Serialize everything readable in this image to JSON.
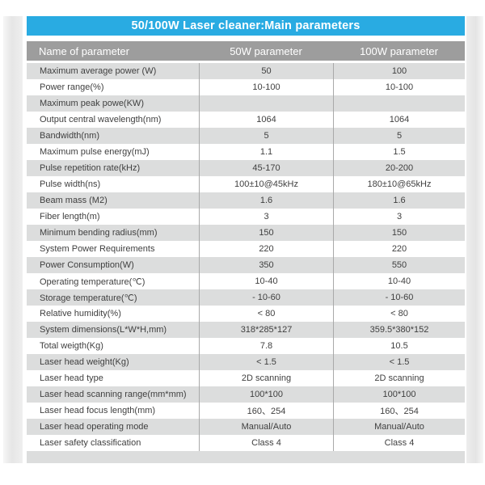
{
  "page": {
    "title": "50/100W Laser cleaner:Main parameters"
  },
  "colors": {
    "title_bar_bg": "#29abe2",
    "title_text": "#ffffff",
    "header_bg": "#9d9d9d",
    "header_text": "#ffffff",
    "row_alt_bg": "#dcdddd",
    "row_bg": "#ffffff",
    "row_text": "#3f3f3f",
    "column_divider": "#a9a9a9"
  },
  "table": {
    "headers": [
      "Name of parameter",
      "50W parameter",
      "100W parameter"
    ],
    "rows": [
      {
        "name": "Maximum average power (W)",
        "v50": "50",
        "v100": "100"
      },
      {
        "name": "Power range(%)",
        "v50": "10-100",
        "v100": "10-100"
      },
      {
        "name": "Maximum peak powe(KW)",
        "v50": "",
        "v100": ""
      },
      {
        "name": "Output central wavelength(nm)",
        "v50": "1064",
        "v100": "1064"
      },
      {
        "name": "Bandwidth(nm)",
        "v50": "5",
        "v100": "5"
      },
      {
        "name": "Maximum pulse energy(mJ)",
        "v50": "1.1",
        "v100": "1.5"
      },
      {
        "name": "Pulse repetition rate(kHz)",
        "v50": "45-170",
        "v100": "20-200"
      },
      {
        "name": "Pulse width(ns)",
        "v50": "100±10@45kHz",
        "v100": "180±10@65kHz"
      },
      {
        "name": "Beam mass (M2)",
        "v50": "1.6",
        "v100": "1.6"
      },
      {
        "name": "Fiber length(m)",
        "v50": "3",
        "v100": "3"
      },
      {
        "name": "Minimum bending radius(mm)",
        "v50": "150",
        "v100": "150"
      },
      {
        "name": "System Power Requirements",
        "v50": "220",
        "v100": "220"
      },
      {
        "name": "Power Consumption(W)",
        "v50": "350",
        "v100": "550"
      },
      {
        "name": "Operating temperature(℃)",
        "v50": "10-40",
        "v100": "10-40"
      },
      {
        "name": "Storage temperature(℃)",
        "v50": "- 10-60",
        "v100": "- 10-60"
      },
      {
        "name": "Relative humidity(%)",
        "v50": "< 80",
        "v100": "< 80"
      },
      {
        "name": "System dimensions(L*W*H,mm)",
        "v50": "318*285*127",
        "v100": "359.5*380*152"
      },
      {
        "name": "Total weigth(Kg)",
        "v50": "7.8",
        "v100": "10.5"
      },
      {
        "name": "Laser head weight(Kg)",
        "v50": "< 1.5",
        "v100": "< 1.5"
      },
      {
        "name": "Laser head type",
        "v50": "2D scanning",
        "v100": "2D scanning"
      },
      {
        "name": "Laser head scanning range(mm*mm)",
        "v50": "100*100",
        "v100": "100*100"
      },
      {
        "name": "Laser head focus length(mm)",
        "v50": "160、254",
        "v100": "160、254"
      },
      {
        "name": "Laser head operating mode",
        "v50": "Manual/Auto",
        "v100": "Manual/Auto"
      },
      {
        "name": "Laser safety classification",
        "v50": "Class 4",
        "v100": "Class 4"
      }
    ]
  }
}
